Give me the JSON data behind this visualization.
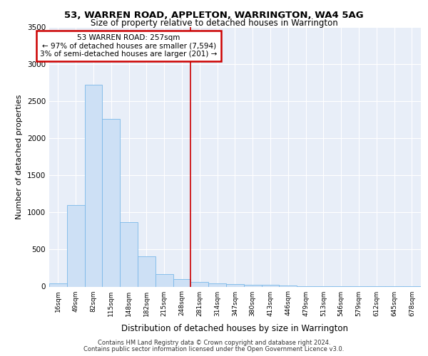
{
  "title1": "53, WARREN ROAD, APPLETON, WARRINGTON, WA4 5AG",
  "title2": "Size of property relative to detached houses in Warrington",
  "xlabel": "Distribution of detached houses by size in Warrington",
  "ylabel": "Number of detached properties",
  "categories": [
    "16sqm",
    "49sqm",
    "82sqm",
    "115sqm",
    "148sqm",
    "182sqm",
    "215sqm",
    "248sqm",
    "281sqm",
    "314sqm",
    "347sqm",
    "380sqm",
    "413sqm",
    "446sqm",
    "479sqm",
    "513sqm",
    "546sqm",
    "579sqm",
    "612sqm",
    "645sqm",
    "678sqm"
  ],
  "values": [
    40,
    1100,
    2720,
    2260,
    870,
    410,
    165,
    100,
    60,
    45,
    35,
    25,
    20,
    12,
    8,
    5,
    4,
    3,
    2,
    1,
    1
  ],
  "bar_color": "#cde0f5",
  "bar_edge_color": "#7ab8e8",
  "annotation_line1": "53 WARREN ROAD: 257sqm",
  "annotation_line2": "← 97% of detached houses are smaller (7,594)",
  "annotation_line3": "3% of semi-detached houses are larger (201) →",
  "vline_color": "#cc0000",
  "annotation_box_edge": "#cc0000",
  "ylim": [
    0,
    3500
  ],
  "yticks": [
    0,
    500,
    1000,
    1500,
    2000,
    2500,
    3000,
    3500
  ],
  "background_color": "#e8eef8",
  "footer1": "Contains HM Land Registry data © Crown copyright and database right 2024.",
  "footer2": "Contains public sector information licensed under the Open Government Licence v3.0."
}
